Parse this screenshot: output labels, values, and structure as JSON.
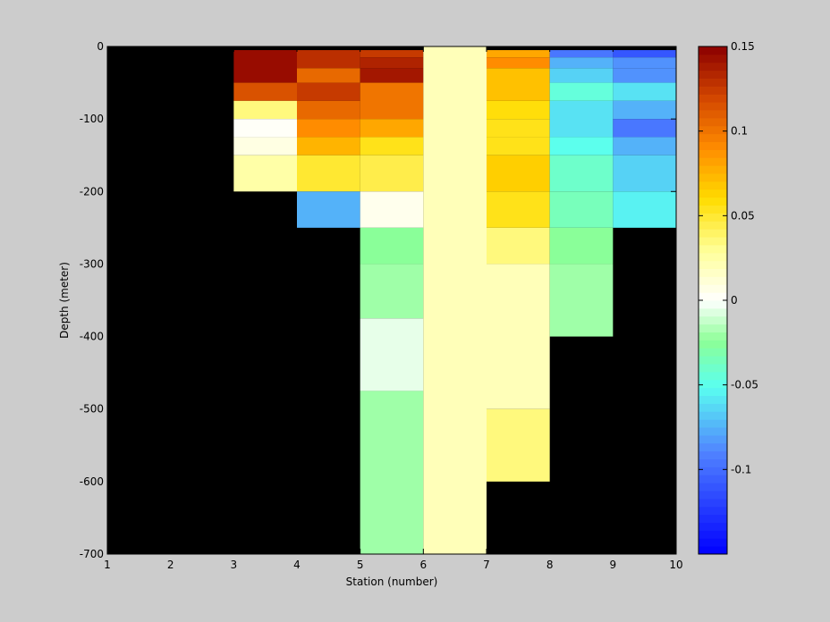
{
  "chart_data": {
    "type": "heatmap",
    "title": "",
    "xlabel": "Station (number)",
    "ylabel": "Depth (meter)",
    "xlim": [
      1,
      10
    ],
    "ylim": [
      -700,
      0
    ],
    "xticks": [
      "1",
      "2",
      "3",
      "4",
      "5",
      "6",
      "7",
      "8",
      "9",
      "10"
    ],
    "yticks": [
      "0",
      "-100",
      "-200",
      "-300",
      "-400",
      "-500",
      "-600",
      "-700"
    ],
    "colorbar": {
      "min": -0.15,
      "max": 0.15,
      "colormap": "jet-like with white at zero",
      "tick_labels": [
        "0.15",
        "0.1",
        "0.05",
        "0",
        "-0.05",
        "-0.1"
      ]
    },
    "missing_color": "#000000",
    "columns": [
      {
        "x": [
          3,
          4
        ],
        "cells": [
          {
            "top": -5,
            "bottom": -50,
            "value": 0.145
          },
          {
            "top": -50,
            "bottom": -75,
            "value": 0.115
          },
          {
            "top": -75,
            "bottom": -100,
            "value": 0.035
          },
          {
            "top": -100,
            "bottom": -125,
            "value": 0.002
          },
          {
            "top": -125,
            "bottom": -150,
            "value": 0.008
          },
          {
            "top": -150,
            "bottom": -200,
            "value": 0.025
          }
        ]
      },
      {
        "x": [
          4,
          5
        ],
        "cells": [
          {
            "top": -5,
            "bottom": -30,
            "value": 0.13
          },
          {
            "top": -30,
            "bottom": -50,
            "value": 0.105
          },
          {
            "top": -50,
            "bottom": -75,
            "value": 0.125
          },
          {
            "top": -75,
            "bottom": -100,
            "value": 0.105
          },
          {
            "top": -100,
            "bottom": -125,
            "value": 0.09
          },
          {
            "top": -125,
            "bottom": -150,
            "value": 0.075
          },
          {
            "top": -150,
            "bottom": -200,
            "value": 0.05
          },
          {
            "top": -200,
            "bottom": -250,
            "value": -0.075
          }
        ]
      },
      {
        "x": [
          5,
          6
        ],
        "cells": [
          {
            "top": -5,
            "bottom": -15,
            "value": 0.125
          },
          {
            "top": -15,
            "bottom": -30,
            "value": 0.135
          },
          {
            "top": -30,
            "bottom": -50,
            "value": 0.14
          },
          {
            "top": -50,
            "bottom": -100,
            "value": 0.1
          },
          {
            "top": -100,
            "bottom": -125,
            "value": 0.08
          },
          {
            "top": -125,
            "bottom": -150,
            "value": 0.055
          },
          {
            "top": -150,
            "bottom": -200,
            "value": 0.045
          },
          {
            "top": -200,
            "bottom": -250,
            "value": 0.005
          },
          {
            "top": -250,
            "bottom": -300,
            "value": -0.025
          },
          {
            "top": -300,
            "bottom": -375,
            "value": -0.02
          },
          {
            "top": -375,
            "bottom": -475,
            "value": -0.005
          },
          {
            "top": -475,
            "bottom": -700,
            "value": -0.02
          }
        ]
      },
      {
        "x": [
          6,
          7
        ],
        "cells": [
          {
            "top": 0,
            "bottom": -700,
            "value": 0.02
          }
        ]
      },
      {
        "x": [
          7,
          8
        ],
        "cells": [
          {
            "top": -5,
            "bottom": -15,
            "value": 0.08
          },
          {
            "top": -15,
            "bottom": -30,
            "value": 0.09
          },
          {
            "top": -30,
            "bottom": -75,
            "value": 0.07
          },
          {
            "top": -75,
            "bottom": -100,
            "value": 0.058
          },
          {
            "top": -100,
            "bottom": -125,
            "value": 0.055
          },
          {
            "top": -125,
            "bottom": -150,
            "value": 0.055
          },
          {
            "top": -150,
            "bottom": -200,
            "value": 0.065
          },
          {
            "top": -200,
            "bottom": -250,
            "value": 0.055
          },
          {
            "top": -250,
            "bottom": -300,
            "value": 0.035
          },
          {
            "top": -300,
            "bottom": -500,
            "value": 0.02
          },
          {
            "top": -500,
            "bottom": -600,
            "value": 0.035
          }
        ]
      },
      {
        "x": [
          8,
          9
        ],
        "cells": [
          {
            "top": -5,
            "bottom": -15,
            "value": -0.095
          },
          {
            "top": -15,
            "bottom": -30,
            "value": -0.075
          },
          {
            "top": -30,
            "bottom": -50,
            "value": -0.065
          },
          {
            "top": -50,
            "bottom": -75,
            "value": -0.045
          },
          {
            "top": -75,
            "bottom": -125,
            "value": -0.06
          },
          {
            "top": -125,
            "bottom": -150,
            "value": -0.05
          },
          {
            "top": -150,
            "bottom": -200,
            "value": -0.04
          },
          {
            "top": -200,
            "bottom": -250,
            "value": -0.035
          },
          {
            "top": -250,
            "bottom": -300,
            "value": -0.025
          },
          {
            "top": -300,
            "bottom": -400,
            "value": -0.02
          }
        ]
      },
      {
        "x": [
          9,
          10
        ],
        "cells": [
          {
            "top": -5,
            "bottom": -15,
            "value": -0.11
          },
          {
            "top": -15,
            "bottom": -30,
            "value": -0.085
          },
          {
            "top": -30,
            "bottom": -50,
            "value": -0.085
          },
          {
            "top": -50,
            "bottom": -75,
            "value": -0.06
          },
          {
            "top": -75,
            "bottom": -100,
            "value": -0.075
          },
          {
            "top": -100,
            "bottom": -125,
            "value": -0.095
          },
          {
            "top": -125,
            "bottom": -150,
            "value": -0.075
          },
          {
            "top": -150,
            "bottom": -200,
            "value": -0.065
          },
          {
            "top": -200,
            "bottom": -250,
            "value": -0.055
          }
        ]
      }
    ]
  }
}
